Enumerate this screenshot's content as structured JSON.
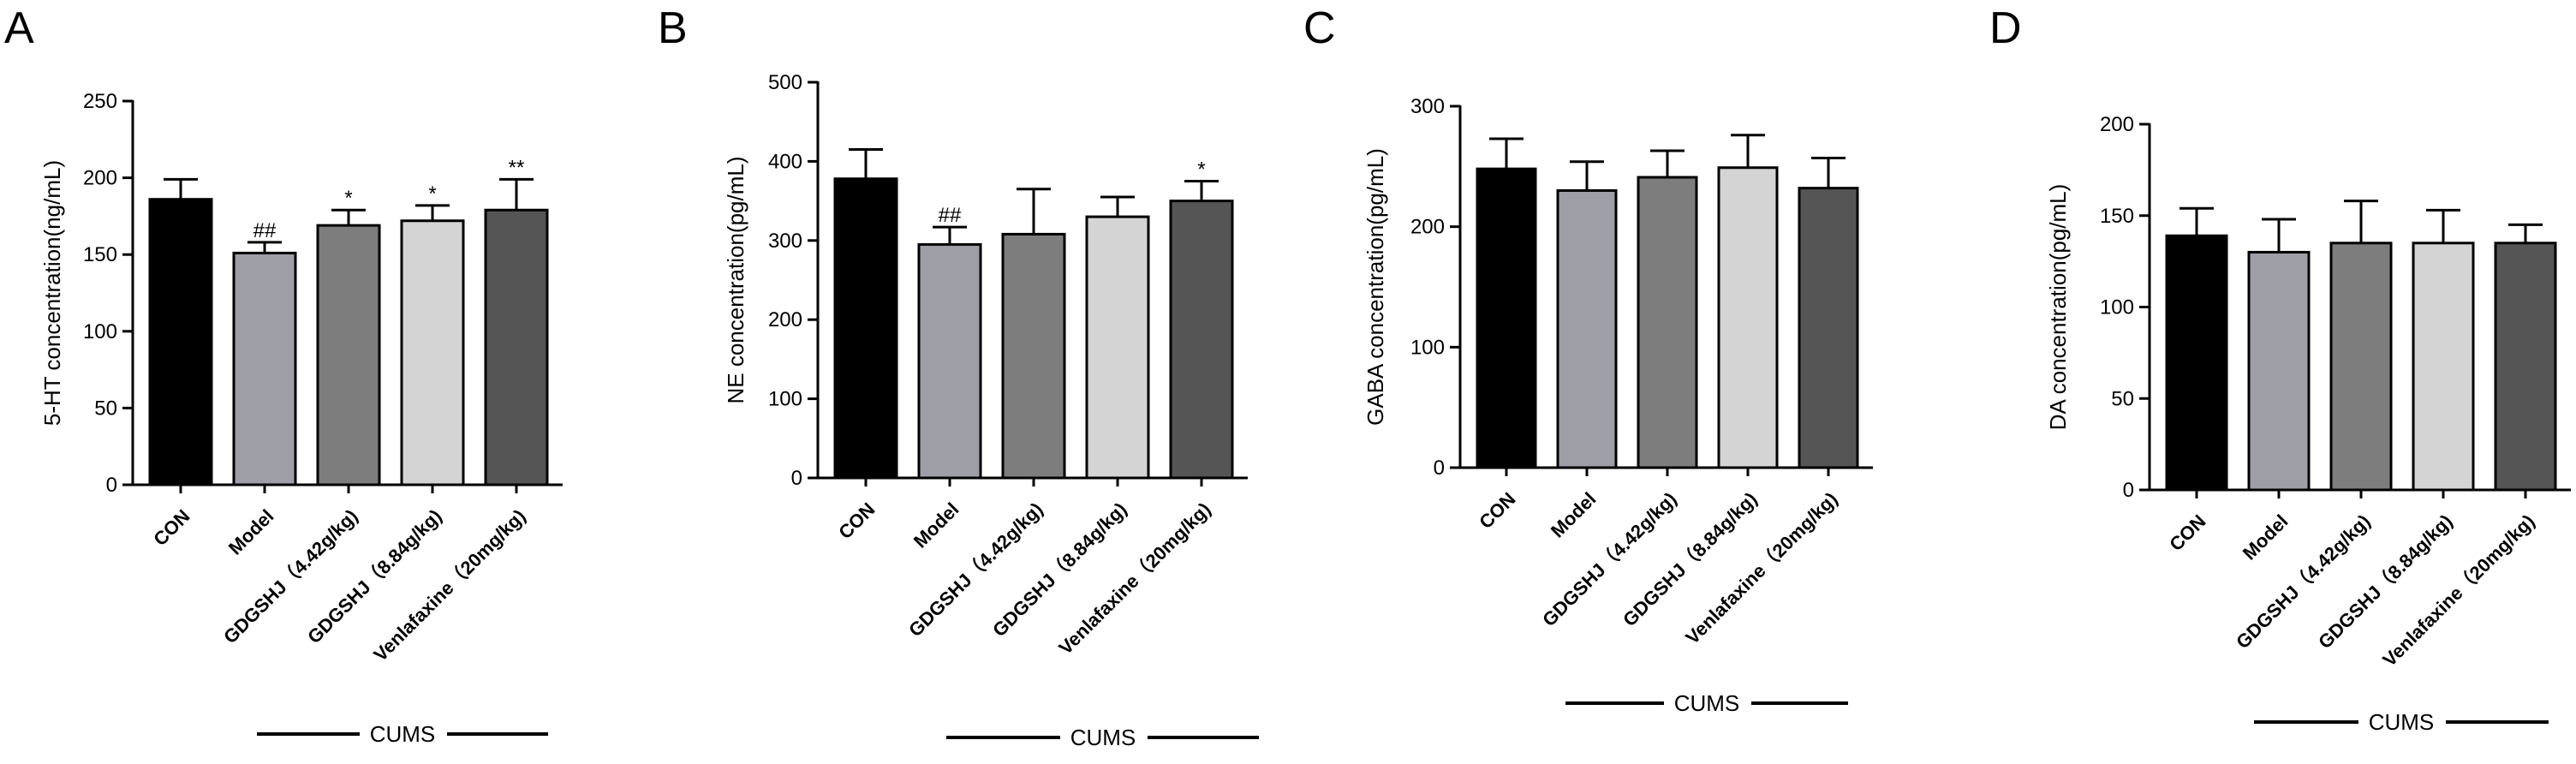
{
  "chart_data": [
    {
      "type": "bar",
      "panel": "A",
      "title": "",
      "xlabel": "",
      "ylabel": "5-HT concentration(ng/mL)",
      "ylim": [
        0,
        250
      ],
      "yticks": [
        0,
        50,
        100,
        150,
        200,
        250
      ],
      "categories": [
        "CON",
        "Model",
        "GDGSHJ（4.42g/kg)",
        "GDGSHJ（8.84g/kg)",
        "Venlafaxine（20mg/kg)"
      ],
      "values": [
        186,
        151,
        169,
        172,
        179
      ],
      "errors": [
        13,
        7,
        10,
        10,
        20
      ],
      "significance": [
        "",
        "##",
        "*",
        "*",
        "**"
      ],
      "colors": [
        "#000000",
        "#9e9ea6",
        "#7d7d7d",
        "#d4d4d4",
        "#555555"
      ],
      "group_label": "CUMS"
    },
    {
      "type": "bar",
      "panel": "B",
      "title": "",
      "xlabel": "",
      "ylabel": "NE concentration(pg/mL)",
      "ylim": [
        0,
        500
      ],
      "yticks": [
        0,
        100,
        200,
        300,
        400,
        500
      ],
      "categories": [
        "CON",
        "Model",
        "GDGSHJ（4.42g/kg)",
        "GDGSHJ（8.84g/kg)",
        "Venlafaxine（20mg/kg)"
      ],
      "values": [
        378,
        295,
        308,
        330,
        350
      ],
      "errors": [
        37,
        22,
        57,
        25,
        25
      ],
      "significance": [
        "",
        "##",
        "",
        "",
        "*"
      ],
      "colors": [
        "#000000",
        "#9e9ea6",
        "#7d7d7d",
        "#d4d4d4",
        "#555555"
      ],
      "group_label": "CUMS"
    },
    {
      "type": "bar",
      "panel": "C",
      "title": "",
      "xlabel": "",
      "ylabel": "GABA concentration(pg/mL)",
      "ylim": [
        0,
        300
      ],
      "yticks": [
        0,
        100,
        200,
        300
      ],
      "categories": [
        "CON",
        "Model",
        "GDGSHJ（4.42g/kg)",
        "GDGSHJ（8.84g/kg)",
        "Venlafaxine（20mg/kg)"
      ],
      "values": [
        248,
        230,
        241,
        249,
        232
      ],
      "errors": [
        25,
        24,
        22,
        27,
        25
      ],
      "significance": [
        "",
        "",
        "",
        "",
        ""
      ],
      "colors": [
        "#000000",
        "#9e9ea6",
        "#7d7d7d",
        "#d4d4d4",
        "#555555"
      ],
      "group_label": "CUMS"
    },
    {
      "type": "bar",
      "panel": "D",
      "title": "",
      "xlabel": "",
      "ylabel": "DA concentration(pg/mL)",
      "ylim": [
        0,
        200
      ],
      "yticks": [
        0,
        50,
        100,
        150,
        200
      ],
      "categories": [
        "CON",
        "Model",
        "GDGSHJ（4.42g/kg)",
        "GDGSHJ（8.84g/kg)",
        "Venlafaxine（20mg/kg)"
      ],
      "values": [
        139,
        130,
        135,
        135,
        135
      ],
      "errors": [
        15,
        18,
        23,
        18,
        10
      ],
      "significance": [
        "",
        "",
        "",
        "",
        ""
      ],
      "colors": [
        "#000000",
        "#9e9ea6",
        "#7d7d7d",
        "#d4d4d4",
        "#555555"
      ],
      "group_label": "CUMS"
    }
  ]
}
